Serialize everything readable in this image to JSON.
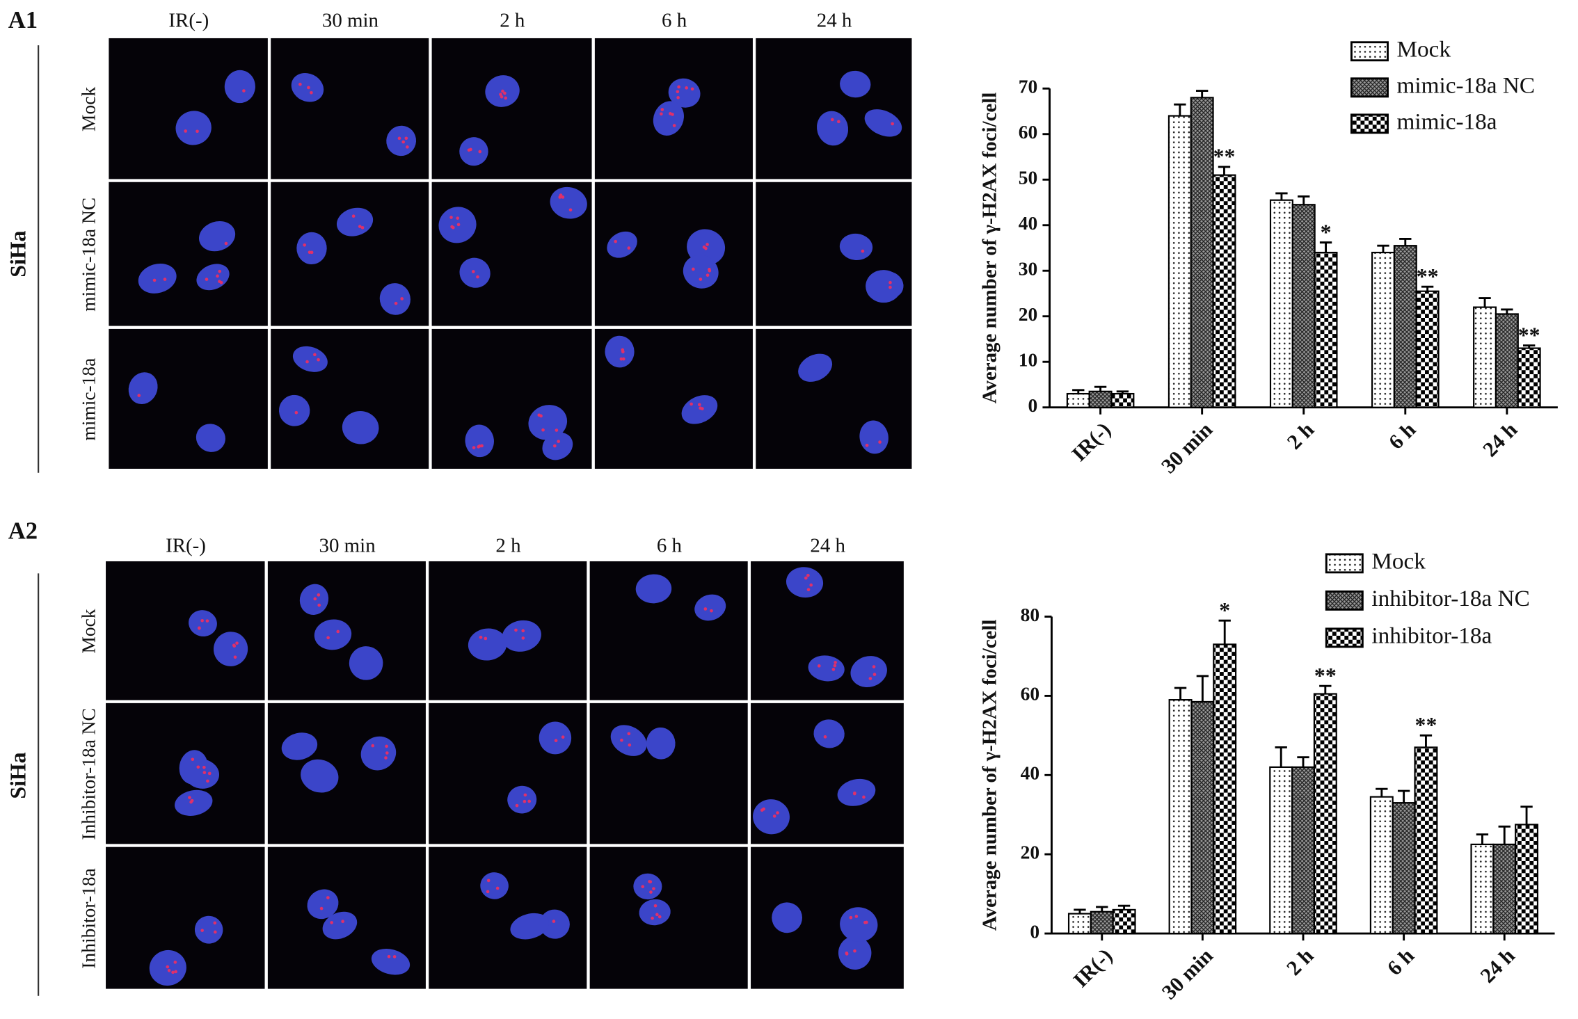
{
  "figure": {
    "panels": [
      {
        "label": "A1",
        "cell_line": "SiHa",
        "columns": [
          "IR(-)",
          "30 min",
          "2 h",
          "6 h",
          "24 h"
        ],
        "rows": [
          "Mock",
          "mimic-18a NC",
          "mimic-18a"
        ]
      },
      {
        "label": "A2",
        "cell_line": "SiHa",
        "columns": [
          "IR(-)",
          "30 min",
          "2 h",
          "6 h",
          "24 h"
        ],
        "rows": [
          "Mock",
          "Inhibitor-18a NC",
          "Inhibitor-18a"
        ]
      }
    ]
  },
  "chart_data": [
    {
      "type": "bar",
      "ylabel": "Average number of γ-H2AX foci/cell",
      "categories": [
        "IR(-)",
        "30 min",
        "2 h",
        "6 h",
        "24 h"
      ],
      "ylim": [
        0,
        70
      ],
      "yticks": [
        0,
        10,
        20,
        30,
        40,
        50,
        60,
        70
      ],
      "legend": "top-right",
      "series": [
        {
          "name": "Mock",
          "pattern": "dots",
          "values": [
            3,
            64,
            45.5,
            34,
            22
          ],
          "errors": [
            0.8,
            2.5,
            1.5,
            1.5,
            2
          ]
        },
        {
          "name": "mimic-18a NC",
          "pattern": "crosshatch",
          "values": [
            3.5,
            68,
            44.5,
            35.5,
            20.5
          ],
          "errors": [
            1,
            1.5,
            1.8,
            1.5,
            1
          ]
        },
        {
          "name": "mimic-18a",
          "pattern": "checker",
          "values": [
            3,
            51,
            34,
            25.5,
            13
          ],
          "errors": [
            0.5,
            1.8,
            2.2,
            1,
            0.6
          ],
          "significance": [
            null,
            "**",
            "*",
            "**",
            "**"
          ]
        }
      ]
    },
    {
      "type": "bar",
      "ylabel": "Average number of γ-H2AX foci/cell",
      "categories": [
        "IR(-)",
        "30 min",
        "2 h",
        "6 h",
        "24 h"
      ],
      "ylim": [
        0,
        80
      ],
      "yticks": [
        0,
        20,
        40,
        60,
        80
      ],
      "legend": "top-right",
      "series": [
        {
          "name": "Mock",
          "pattern": "dots",
          "values": [
            5,
            59,
            42,
            34.5,
            22.5
          ],
          "errors": [
            1,
            3,
            5,
            2,
            2.5
          ]
        },
        {
          "name": "inhibitor-18a NC",
          "pattern": "crosshatch",
          "values": [
            5.5,
            58.5,
            42,
            33,
            22.5
          ],
          "errors": [
            1.2,
            6.5,
            2.5,
            3,
            4.5
          ]
        },
        {
          "name": "inhibitor-18a",
          "pattern": "checker",
          "values": [
            6,
            73,
            60.5,
            47,
            27.5
          ],
          "errors": [
            1,
            6,
            2,
            3,
            4.5
          ],
          "significance": [
            null,
            "*",
            "**",
            "**",
            null
          ]
        }
      ]
    }
  ]
}
